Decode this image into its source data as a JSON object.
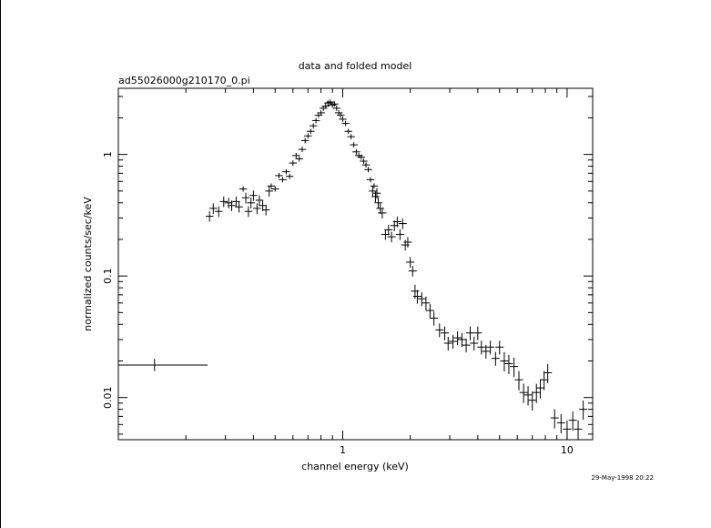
{
  "chart_data": {
    "type": "scatter",
    "title": "data and folded model",
    "subtitle": "ad55026000g210170_0.pi",
    "xlabel": "channel energy (keV)",
    "ylabel": "normalized counts/sec/keV",
    "timestamp": "29-May-1998 20:22",
    "x_scale": "log",
    "y_scale": "log",
    "xlim": [
      0.1,
      13
    ],
    "ylim": [
      0.0045,
      3.5
    ],
    "x_tick_labels": [
      {
        "value": 1,
        "label": "1"
      },
      {
        "value": 10,
        "label": "10"
      }
    ],
    "y_tick_labels": [
      {
        "value": 0.01,
        "label": "0.01"
      },
      {
        "value": 0.1,
        "label": "0.1"
      },
      {
        "value": 1,
        "label": "1"
      }
    ],
    "grid": false,
    "legend": "none",
    "series": [
      {
        "points": [
          {
            "x": 0.145,
            "xerr": [
              0.1,
              0.25
            ],
            "y": 0.0185,
            "yerr": [
              0.0165,
              0.0208
            ]
          },
          {
            "x": 0.255,
            "y": 0.31
          },
          {
            "x": 0.265,
            "y": 0.36
          },
          {
            "x": 0.28,
            "y": 0.34
          },
          {
            "x": 0.295,
            "y": 0.41
          },
          {
            "x": 0.31,
            "y": 0.4
          },
          {
            "x": 0.32,
            "y": 0.38
          },
          {
            "x": 0.335,
            "y": 0.41
          },
          {
            "x": 0.345,
            "y": 0.37
          },
          {
            "x": 0.36,
            "y": 0.52
          },
          {
            "x": 0.37,
            "y": 0.44
          },
          {
            "x": 0.38,
            "y": 0.34
          },
          {
            "x": 0.39,
            "y": 0.4
          },
          {
            "x": 0.4,
            "y": 0.46
          },
          {
            "x": 0.415,
            "y": 0.36
          },
          {
            "x": 0.425,
            "y": 0.42
          },
          {
            "x": 0.44,
            "y": 0.38
          },
          {
            "x": 0.455,
            "y": 0.35
          },
          {
            "x": 0.47,
            "y": 0.5
          },
          {
            "x": 0.48,
            "y": 0.55
          },
          {
            "x": 0.5,
            "y": 0.52
          },
          {
            "x": 0.52,
            "y": 0.67
          },
          {
            "x": 0.54,
            "y": 0.62
          },
          {
            "x": 0.56,
            "y": 0.72
          },
          {
            "x": 0.58,
            "y": 0.66
          },
          {
            "x": 0.6,
            "y": 0.85
          },
          {
            "x": 0.62,
            "y": 0.98
          },
          {
            "x": 0.64,
            "y": 0.92
          },
          {
            "x": 0.66,
            "y": 1.1
          },
          {
            "x": 0.68,
            "y": 1.3
          },
          {
            "x": 0.7,
            "y": 1.42
          },
          {
            "x": 0.72,
            "y": 1.55
          },
          {
            "x": 0.74,
            "y": 1.72
          },
          {
            "x": 0.76,
            "y": 1.9
          },
          {
            "x": 0.78,
            "y": 2.1
          },
          {
            "x": 0.8,
            "y": 2.2
          },
          {
            "x": 0.82,
            "y": 2.4
          },
          {
            "x": 0.84,
            "y": 2.5
          },
          {
            "x": 0.86,
            "y": 2.65
          },
          {
            "x": 0.88,
            "y": 2.7
          },
          {
            "x": 0.9,
            "y": 2.55
          },
          {
            "x": 0.92,
            "y": 2.6
          },
          {
            "x": 0.94,
            "y": 2.4
          },
          {
            "x": 0.96,
            "y": 2.2
          },
          {
            "x": 0.98,
            "y": 2.1
          },
          {
            "x": 1.0,
            "y": 1.95
          },
          {
            "x": 1.03,
            "y": 1.8
          },
          {
            "x": 1.06,
            "y": 1.55
          },
          {
            "x": 1.09,
            "y": 1.4
          },
          {
            "x": 1.12,
            "y": 1.2
          },
          {
            "x": 1.15,
            "y": 1.05
          },
          {
            "x": 1.18,
            "y": 0.98
          },
          {
            "x": 1.21,
            "y": 0.95
          },
          {
            "x": 1.24,
            "y": 0.88
          },
          {
            "x": 1.27,
            "y": 0.82
          },
          {
            "x": 1.3,
            "y": 0.75
          },
          {
            "x": 1.33,
            "y": 0.62
          },
          {
            "x": 1.36,
            "y": 0.5
          },
          {
            "x": 1.38,
            "y": 0.55
          },
          {
            "x": 1.4,
            "y": 0.45
          },
          {
            "x": 1.42,
            "y": 0.48
          },
          {
            "x": 1.44,
            "y": 0.4
          },
          {
            "x": 1.47,
            "y": 0.36
          },
          {
            "x": 1.5,
            "y": 0.33
          },
          {
            "x": 1.55,
            "y": 0.22
          },
          {
            "x": 1.6,
            "y": 0.24
          },
          {
            "x": 1.65,
            "y": 0.21
          },
          {
            "x": 1.7,
            "y": 0.26
          },
          {
            "x": 1.75,
            "y": 0.28
          },
          {
            "x": 1.8,
            "y": 0.22
          },
          {
            "x": 1.85,
            "y": 0.27
          },
          {
            "x": 1.9,
            "y": 0.18
          },
          {
            "x": 1.95,
            "y": 0.19
          },
          {
            "x": 2.0,
            "y": 0.13
          },
          {
            "x": 2.05,
            "y": 0.11
          },
          {
            "x": 2.1,
            "y": 0.075
          },
          {
            "x": 2.15,
            "y": 0.068
          },
          {
            "x": 2.25,
            "y": 0.065
          },
          {
            "x": 2.35,
            "y": 0.06
          },
          {
            "x": 2.45,
            "y": 0.052
          },
          {
            "x": 2.55,
            "y": 0.045
          },
          {
            "x": 2.7,
            "y": 0.036
          },
          {
            "x": 2.85,
            "y": 0.034
          },
          {
            "x": 2.95,
            "y": 0.028
          },
          {
            "x": 3.1,
            "y": 0.029
          },
          {
            "x": 3.25,
            "y": 0.031
          },
          {
            "x": 3.4,
            "y": 0.03
          },
          {
            "x": 3.55,
            "y": 0.027
          },
          {
            "x": 3.7,
            "y": 0.034
          },
          {
            "x": 3.85,
            "y": 0.028
          },
          {
            "x": 4.0,
            "y": 0.034
          },
          {
            "x": 4.15,
            "y": 0.026
          },
          {
            "x": 4.35,
            "y": 0.024
          },
          {
            "x": 4.55,
            "y": 0.026
          },
          {
            "x": 4.8,
            "y": 0.021
          },
          {
            "x": 5.0,
            "y": 0.026
          },
          {
            "x": 5.25,
            "y": 0.02
          },
          {
            "x": 5.5,
            "y": 0.019
          },
          {
            "x": 5.8,
            "y": 0.018
          },
          {
            "x": 6.1,
            "y": 0.014
          },
          {
            "x": 6.4,
            "y": 0.011
          },
          {
            "x": 6.7,
            "y": 0.0105
          },
          {
            "x": 7.0,
            "y": 0.0095
          },
          {
            "x": 7.3,
            "y": 0.011
          },
          {
            "x": 7.6,
            "y": 0.012
          },
          {
            "x": 7.9,
            "y": 0.014
          },
          {
            "x": 8.2,
            "y": 0.016
          },
          {
            "x": 8.8,
            "y": 0.0068
          },
          {
            "x": 9.4,
            "y": 0.0062
          },
          {
            "x": 10.0,
            "y": 0.0055
          },
          {
            "x": 10.6,
            "y": 0.0065
          },
          {
            "x": 11.2,
            "y": 0.0055
          },
          {
            "x": 11.8,
            "y": 0.008
          }
        ]
      }
    ]
  }
}
